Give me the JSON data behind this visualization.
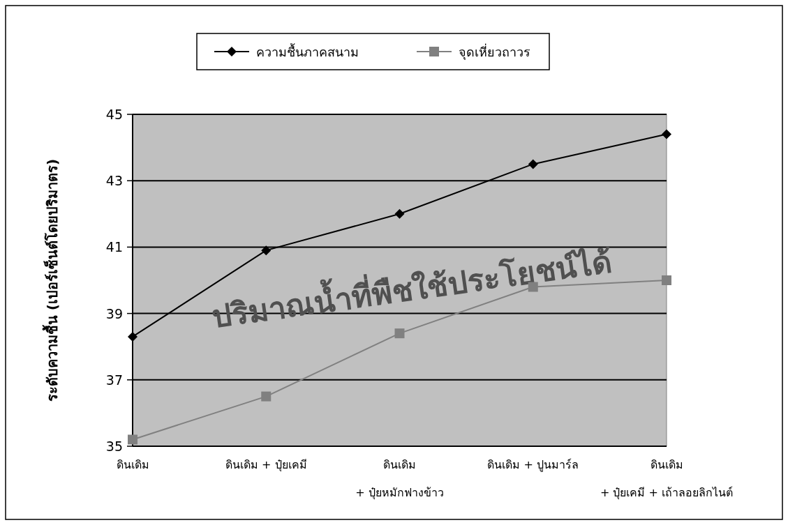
{
  "chart_data": {
    "type": "line",
    "ylabel": "ระดับความชื้น (เปอร์เซ็นต์โดยปริมาตร)",
    "categories": [
      "ดินเดิม",
      "ดินเดิม + ปุ๋ยเคมี",
      "ดินเดิม\n+ ปุ๋ยหมักฟางข้าว",
      "ดินเดิม + ปูนมาร์ล",
      "ดินเดิม\n+ ปุ๋ยเคมี + เถ้าลอยลิกไนต์"
    ],
    "series": [
      {
        "name": "ความชื้นภาคสนาม",
        "color": "#000000",
        "marker": "diamond",
        "values": [
          38.3,
          40.9,
          42.0,
          43.5,
          44.4
        ]
      },
      {
        "name": "จุดเหี่ยวถาวร",
        "color": "#808080",
        "marker": "square",
        "values": [
          35.2,
          36.5,
          38.4,
          39.8,
          40.0
        ]
      }
    ],
    "ylim": [
      35,
      45
    ],
    "yticks": [
      35,
      37,
      39,
      41,
      43,
      45
    ],
    "grid": "y",
    "legend": "top",
    "annotations": [
      "ปริมาณน้ำที่พืชใช้ประโยชน์ได้"
    ]
  }
}
